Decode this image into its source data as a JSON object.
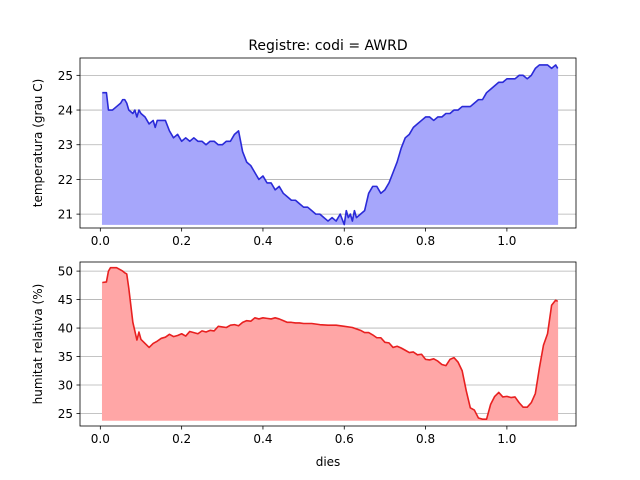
{
  "title": "Registre: codi = AWRD",
  "chart_data": [
    {
      "type": "area",
      "title": "Registre: codi = AWRD",
      "xlabel": "",
      "ylabel": "temperatura (grau C)",
      "xlim": [
        -0.05,
        1.17
      ],
      "ylim": [
        20.6,
        25.5
      ],
      "xticks": [
        0.0,
        0.2,
        0.4,
        0.6,
        0.8,
        1.0
      ],
      "xtick_labels": [
        "0.0",
        "0.2",
        "0.4",
        "0.6",
        "0.8",
        "1.0"
      ],
      "yticks": [
        21,
        22,
        23,
        24,
        25
      ],
      "ytick_labels": [
        "21",
        "22",
        "23",
        "24",
        "25"
      ],
      "baseline": 20.7,
      "grid": "y",
      "color": "#2a2ad8",
      "fill_color": "#a6a6fb",
      "series": [
        {
          "x": [
            0.005,
            0.015,
            0.02,
            0.03,
            0.04,
            0.05,
            0.055,
            0.06,
            0.065,
            0.07,
            0.08,
            0.085,
            0.09,
            0.095,
            0.1,
            0.11,
            0.12,
            0.13,
            0.135,
            0.14,
            0.15,
            0.16,
            0.17,
            0.18,
            0.19,
            0.2,
            0.21,
            0.22,
            0.23,
            0.24,
            0.25,
            0.26,
            0.27,
            0.28,
            0.29,
            0.3,
            0.31,
            0.32,
            0.33,
            0.34,
            0.35,
            0.36,
            0.37,
            0.38,
            0.39,
            0.4,
            0.41,
            0.42,
            0.43,
            0.44,
            0.45,
            0.46,
            0.47,
            0.48,
            0.49,
            0.5,
            0.51,
            0.52,
            0.53,
            0.54,
            0.55,
            0.56,
            0.57,
            0.58,
            0.59,
            0.6,
            0.605,
            0.61,
            0.615,
            0.62,
            0.625,
            0.63,
            0.64,
            0.65,
            0.66,
            0.67,
            0.68,
            0.69,
            0.7,
            0.71,
            0.72,
            0.73,
            0.74,
            0.75,
            0.76,
            0.77,
            0.78,
            0.79,
            0.8,
            0.81,
            0.82,
            0.83,
            0.84,
            0.85,
            0.86,
            0.87,
            0.88,
            0.89,
            0.9,
            0.91,
            0.92,
            0.93,
            0.94,
            0.95,
            0.96,
            0.97,
            0.98,
            0.99,
            1.0,
            1.01,
            1.02,
            1.03,
            1.04,
            1.05,
            1.06,
            1.07,
            1.08,
            1.09,
            1.1,
            1.11,
            1.12,
            1.125
          ],
          "y": [
            24.5,
            24.5,
            24.0,
            24.0,
            24.1,
            24.2,
            24.3,
            24.3,
            24.2,
            24.0,
            23.9,
            24.0,
            23.8,
            24.0,
            23.9,
            23.8,
            23.6,
            23.7,
            23.5,
            23.7,
            23.7,
            23.7,
            23.4,
            23.2,
            23.3,
            23.1,
            23.2,
            23.1,
            23.2,
            23.1,
            23.1,
            23.0,
            23.1,
            23.1,
            23.0,
            23.0,
            23.1,
            23.1,
            23.3,
            23.4,
            22.8,
            22.5,
            22.4,
            22.2,
            22.0,
            22.1,
            21.9,
            21.9,
            21.7,
            21.8,
            21.6,
            21.5,
            21.4,
            21.4,
            21.3,
            21.2,
            21.2,
            21.1,
            21.0,
            21.0,
            20.9,
            20.8,
            20.9,
            20.8,
            21.0,
            20.7,
            21.1,
            20.9,
            21.0,
            20.8,
            21.1,
            20.9,
            21.0,
            21.1,
            21.6,
            21.8,
            21.8,
            21.6,
            21.7,
            21.9,
            22.2,
            22.5,
            22.9,
            23.2,
            23.3,
            23.5,
            23.6,
            23.7,
            23.8,
            23.8,
            23.7,
            23.8,
            23.8,
            23.9,
            23.9,
            24.0,
            24.0,
            24.1,
            24.1,
            24.1,
            24.2,
            24.3,
            24.3,
            24.5,
            24.6,
            24.7,
            24.8,
            24.8,
            24.9,
            24.9,
            24.9,
            25.0,
            25.0,
            24.9,
            25.0,
            25.2,
            25.3,
            25.3,
            25.3,
            25.2,
            25.3,
            25.2
          ]
        }
      ]
    },
    {
      "type": "area",
      "title": "",
      "xlabel": "dies",
      "ylabel": "humitat relativa (%)",
      "xlim": [
        -0.05,
        1.17
      ],
      "ylim": [
        22.8,
        51.6
      ],
      "xticks": [
        0.0,
        0.2,
        0.4,
        0.6,
        0.8,
        1.0
      ],
      "xtick_labels": [
        "0.0",
        "0.2",
        "0.4",
        "0.6",
        "0.8",
        "1.0"
      ],
      "yticks": [
        25,
        30,
        35,
        40,
        45,
        50
      ],
      "ytick_labels": [
        "25",
        "30",
        "35",
        "40",
        "45",
        "50"
      ],
      "baseline": 23.8,
      "grid": "y",
      "color": "#e82020",
      "fill_color": "#ffa6a6",
      "series": [
        {
          "x": [
            0.005,
            0.015,
            0.02,
            0.025,
            0.03,
            0.04,
            0.05,
            0.055,
            0.06,
            0.065,
            0.07,
            0.08,
            0.09,
            0.095,
            0.1,
            0.11,
            0.12,
            0.13,
            0.14,
            0.15,
            0.16,
            0.17,
            0.18,
            0.19,
            0.2,
            0.21,
            0.22,
            0.23,
            0.24,
            0.25,
            0.26,
            0.27,
            0.28,
            0.29,
            0.3,
            0.31,
            0.32,
            0.33,
            0.34,
            0.35,
            0.36,
            0.37,
            0.38,
            0.39,
            0.4,
            0.41,
            0.42,
            0.43,
            0.44,
            0.45,
            0.46,
            0.47,
            0.48,
            0.49,
            0.5,
            0.52,
            0.54,
            0.56,
            0.58,
            0.6,
            0.62,
            0.64,
            0.65,
            0.66,
            0.67,
            0.68,
            0.69,
            0.7,
            0.71,
            0.72,
            0.73,
            0.74,
            0.75,
            0.76,
            0.77,
            0.78,
            0.79,
            0.8,
            0.81,
            0.82,
            0.83,
            0.84,
            0.85,
            0.86,
            0.87,
            0.88,
            0.89,
            0.9,
            0.91,
            0.92,
            0.93,
            0.94,
            0.95,
            0.96,
            0.97,
            0.98,
            0.99,
            1.0,
            1.01,
            1.02,
            1.03,
            1.04,
            1.05,
            1.06,
            1.07,
            1.08,
            1.09,
            1.1,
            1.11,
            1.12,
            1.125
          ],
          "y": [
            48.0,
            48.1,
            50.0,
            50.6,
            50.6,
            50.6,
            50.2,
            50.0,
            49.7,
            49.5,
            47.0,
            41.0,
            37.9,
            39.3,
            38.0,
            37.3,
            36.6,
            37.3,
            37.7,
            38.2,
            38.4,
            38.9,
            38.5,
            38.7,
            39.0,
            38.6,
            39.4,
            39.2,
            39.0,
            39.5,
            39.3,
            39.6,
            39.5,
            40.3,
            40.2,
            40.1,
            40.5,
            40.6,
            40.4,
            41.0,
            41.3,
            41.2,
            41.8,
            41.6,
            41.8,
            41.7,
            41.6,
            41.8,
            41.6,
            41.3,
            41.0,
            41.0,
            40.9,
            40.9,
            40.8,
            40.8,
            40.6,
            40.5,
            40.5,
            40.3,
            40.1,
            39.6,
            39.2,
            39.2,
            38.8,
            38.3,
            38.3,
            37.5,
            37.4,
            36.6,
            36.8,
            36.5,
            36.1,
            35.7,
            35.8,
            35.3,
            35.4,
            34.5,
            34.4,
            34.6,
            34.2,
            33.6,
            33.4,
            34.5,
            34.8,
            34.0,
            32.5,
            29.0,
            26.0,
            25.6,
            24.2,
            24.0,
            24.0,
            26.6,
            28.0,
            28.7,
            27.9,
            28.0,
            27.8,
            27.9,
            26.9,
            26.1,
            26.1,
            26.9,
            28.5,
            33.0,
            37.0,
            39.0,
            44.0,
            44.9,
            44.7
          ]
        }
      ]
    }
  ]
}
